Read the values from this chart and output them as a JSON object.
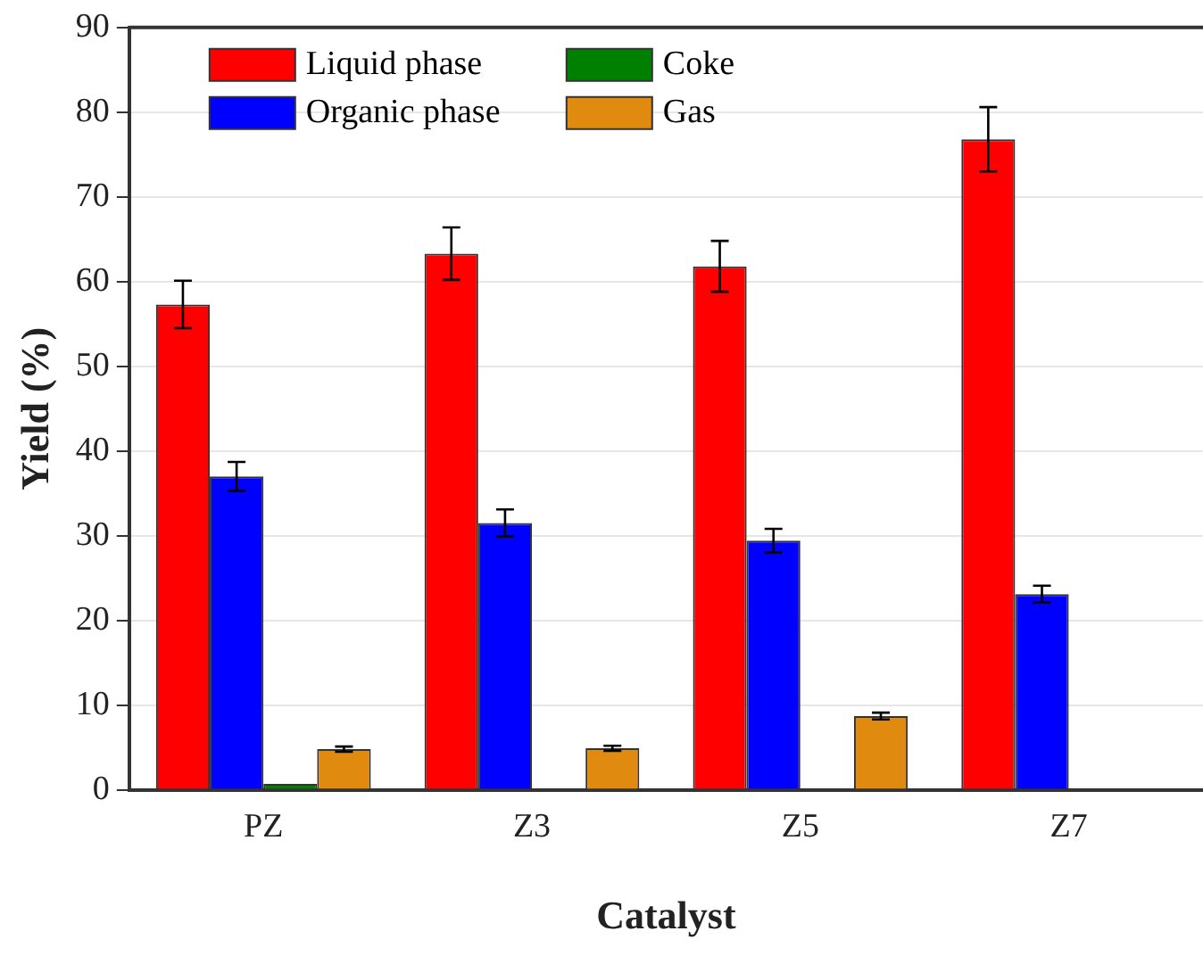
{
  "chart_data": {
    "type": "bar",
    "xlabel": "Catalyst",
    "ylabel": "Yield (%)",
    "categories": [
      "PZ",
      "Z3",
      "Z5",
      "Z7"
    ],
    "series": [
      {
        "name": "Liquid phase",
        "color": "#ff0000",
        "values": [
          57.3,
          63.3,
          61.8,
          76.8
        ],
        "errors": [
          2.8,
          3.1,
          3.0,
          3.8
        ]
      },
      {
        "name": "Organic phase",
        "color": "#0000ff",
        "values": [
          37.0,
          31.5,
          29.4,
          23.1
        ],
        "errors": [
          1.7,
          1.6,
          1.4,
          1.0
        ]
      },
      {
        "name": "Coke",
        "color": "#008000",
        "values": [
          0.7,
          null,
          0.1,
          0.1
        ]
      },
      {
        "name": "Gas",
        "color": "#e08a10",
        "values": [
          4.8,
          4.9,
          8.7,
          null
        ],
        "errors": [
          0.3,
          0.3,
          0.4,
          null
        ]
      }
    ],
    "ylim": [
      0,
      90
    ],
    "yticks": [
      0,
      10,
      20,
      30,
      40,
      50,
      60,
      70,
      80,
      90
    ],
    "grid": "y",
    "legend": "top left"
  }
}
